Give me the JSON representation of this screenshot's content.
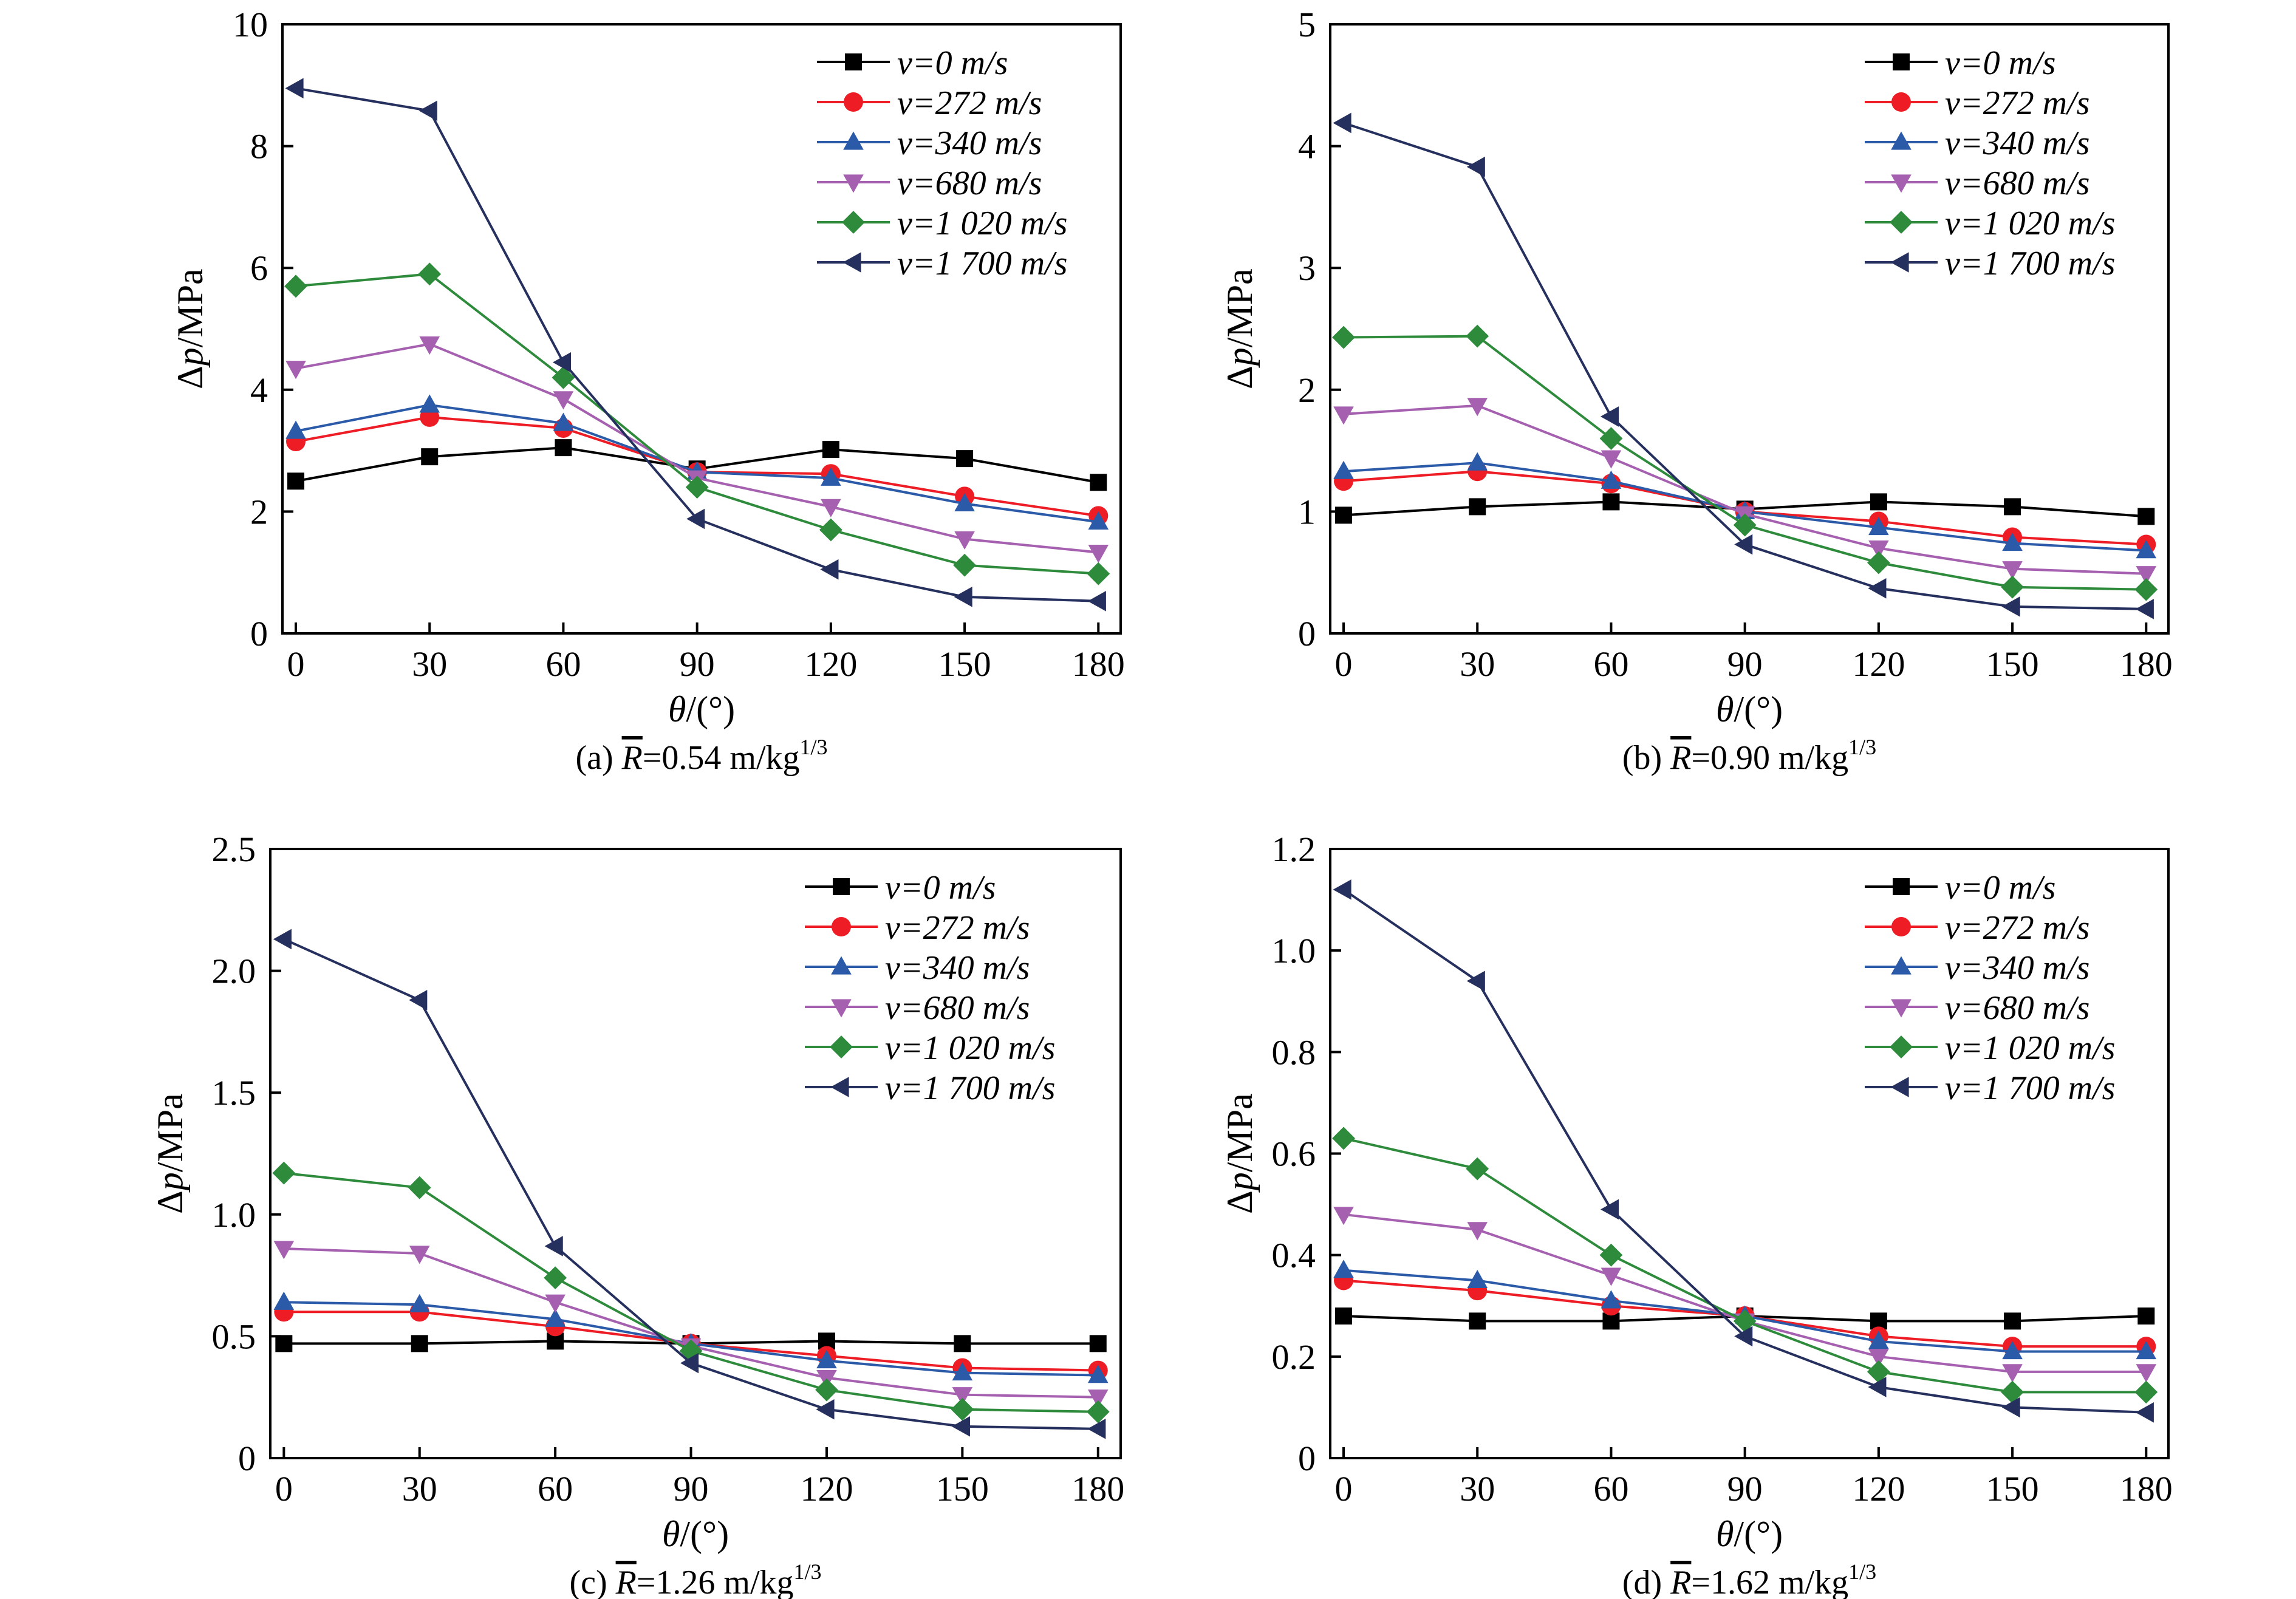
{
  "chart_data": [
    {
      "type": "line",
      "panel": "(a)",
      "caption": {
        "prefix": "(a) ",
        "var": "R",
        "eq": "=0.54 m/kg",
        "sup": "1/3"
      },
      "xlabel": {
        "var": "θ",
        "unit": "/(°)"
      },
      "ylabel": {
        "prefix": "Δ",
        "var": "p",
        "unit": "/MPa"
      },
      "x": [
        0,
        30,
        60,
        90,
        120,
        150,
        180
      ],
      "xlim": [
        -3,
        185
      ],
      "ylim": [
        0,
        10
      ],
      "yticks": [
        "0",
        "2",
        "4",
        "6",
        "8",
        "10"
      ],
      "xticks": [
        "0",
        "30",
        "60",
        "90",
        "120",
        "150",
        "180"
      ],
      "legend_position": "top-right",
      "series": [
        {
          "name": "v=0 m/s",
          "values": [
            2.5,
            2.9,
            3.05,
            2.7,
            3.02,
            2.87,
            2.48
          ]
        },
        {
          "name": "v=272 m/s",
          "values": [
            3.15,
            3.55,
            3.37,
            2.65,
            2.62,
            2.25,
            1.93
          ]
        },
        {
          "name": "v=340 m/s",
          "values": [
            3.32,
            3.75,
            3.45,
            2.65,
            2.55,
            2.13,
            1.83
          ]
        },
        {
          "name": "v=680 m/s",
          "values": [
            4.35,
            4.75,
            3.85,
            2.55,
            2.08,
            1.55,
            1.33
          ]
        },
        {
          "name": "v=1 020 m/s",
          "values": [
            5.7,
            5.9,
            4.2,
            2.4,
            1.7,
            1.12,
            0.98
          ]
        },
        {
          "name": "v=1 700 m/s",
          "values": [
            8.95,
            8.58,
            4.45,
            1.88,
            1.05,
            0.6,
            0.53
          ]
        }
      ]
    },
    {
      "type": "line",
      "panel": "(b)",
      "caption": {
        "prefix": "(b) ",
        "var": "R",
        "eq": "=0.90 m/kg",
        "sup": "1/3"
      },
      "xlabel": {
        "var": "θ",
        "unit": "/(°)"
      },
      "ylabel": {
        "prefix": "Δ",
        "var": "p",
        "unit": "/MPa"
      },
      "x": [
        0,
        30,
        60,
        90,
        120,
        150,
        180
      ],
      "xlim": [
        -3,
        185
      ],
      "ylim": [
        0,
        5
      ],
      "yticks": [
        "0",
        "1",
        "2",
        "3",
        "4",
        "5"
      ],
      "xticks": [
        "0",
        "30",
        "60",
        "90",
        "120",
        "150",
        "180"
      ],
      "legend_position": "top-right",
      "series": [
        {
          "name": "v=0 m/s",
          "values": [
            0.97,
            1.04,
            1.08,
            1.02,
            1.08,
            1.04,
            0.96
          ]
        },
        {
          "name": "v=272 m/s",
          "values": [
            1.25,
            1.33,
            1.23,
            1.0,
            0.92,
            0.79,
            0.73
          ]
        },
        {
          "name": "v=340 m/s",
          "values": [
            1.33,
            1.4,
            1.25,
            1.0,
            0.87,
            0.74,
            0.68
          ]
        },
        {
          "name": "v=680 m/s",
          "values": [
            1.8,
            1.87,
            1.44,
            0.98,
            0.7,
            0.53,
            0.49
          ]
        },
        {
          "name": "v=1 020 m/s",
          "values": [
            2.43,
            2.44,
            1.6,
            0.89,
            0.58,
            0.38,
            0.36
          ]
        },
        {
          "name": "v=1 700 m/s",
          "values": [
            4.19,
            3.83,
            1.78,
            0.73,
            0.37,
            0.22,
            0.2
          ]
        }
      ]
    },
    {
      "type": "line",
      "panel": "(c)",
      "caption": {
        "prefix": "(c) ",
        "var": "R",
        "eq": "=1.26 m/kg",
        "sup": "1/3"
      },
      "xlabel": {
        "var": "θ",
        "unit": "/(°)"
      },
      "ylabel": {
        "prefix": "Δ",
        "var": "p",
        "unit": "/MPa"
      },
      "x": [
        0,
        30,
        60,
        90,
        120,
        150,
        180
      ],
      "xlim": [
        -3,
        185
      ],
      "ylim": [
        0,
        2.5
      ],
      "yticks": [
        "0",
        "0.5",
        "1.0",
        "1.5",
        "2.0",
        "2.5"
      ],
      "xticks": [
        "0",
        "30",
        "60",
        "90",
        "120",
        "150",
        "180"
      ],
      "legend_position": "top-right",
      "series": [
        {
          "name": "v=0 m/s",
          "values": [
            0.47,
            0.47,
            0.48,
            0.47,
            0.48,
            0.47,
            0.47
          ]
        },
        {
          "name": "v=272 m/s",
          "values": [
            0.6,
            0.6,
            0.54,
            0.47,
            0.42,
            0.37,
            0.36
          ]
        },
        {
          "name": "v=340 m/s",
          "values": [
            0.64,
            0.63,
            0.57,
            0.47,
            0.4,
            0.35,
            0.34
          ]
        },
        {
          "name": "v=680 m/s",
          "values": [
            0.86,
            0.84,
            0.64,
            0.46,
            0.33,
            0.26,
            0.25
          ]
        },
        {
          "name": "v=1 020 m/s",
          "values": [
            1.17,
            1.11,
            0.74,
            0.44,
            0.28,
            0.2,
            0.19
          ]
        },
        {
          "name": "v=1 700 m/s",
          "values": [
            2.13,
            1.88,
            0.87,
            0.39,
            0.2,
            0.13,
            0.12
          ]
        }
      ]
    },
    {
      "type": "line",
      "panel": "(d)",
      "caption": {
        "prefix": "(d) ",
        "var": "R",
        "eq": "=1.62 m/kg",
        "sup": "1/3"
      },
      "xlabel": {
        "var": "θ",
        "unit": "/(°)"
      },
      "ylabel": {
        "prefix": "Δ",
        "var": "p",
        "unit": "/MPa"
      },
      "x": [
        0,
        30,
        60,
        90,
        120,
        150,
        180
      ],
      "xlim": [
        -3,
        185
      ],
      "ylim": [
        0,
        1.2
      ],
      "yticks": [
        "0",
        "0.2",
        "0.4",
        "0.6",
        "0.8",
        "1.0",
        "1.2"
      ],
      "xticks": [
        "0",
        "30",
        "60",
        "90",
        "120",
        "150",
        "180"
      ],
      "legend_position": "top-right",
      "series": [
        {
          "name": "v=0 m/s",
          "values": [
            0.28,
            0.27,
            0.27,
            0.28,
            0.27,
            0.27,
            0.28
          ]
        },
        {
          "name": "v=272 m/s",
          "values": [
            0.35,
            0.33,
            0.3,
            0.28,
            0.24,
            0.22,
            0.22
          ]
        },
        {
          "name": "v=340 m/s",
          "values": [
            0.37,
            0.35,
            0.31,
            0.28,
            0.23,
            0.21,
            0.21
          ]
        },
        {
          "name": "v=680 m/s",
          "values": [
            0.48,
            0.45,
            0.36,
            0.27,
            0.2,
            0.17,
            0.17
          ]
        },
        {
          "name": "v=1 020 m/s",
          "values": [
            0.63,
            0.57,
            0.4,
            0.27,
            0.17,
            0.13,
            0.13
          ]
        },
        {
          "name": "v=1 700 m/s",
          "values": [
            1.12,
            0.94,
            0.49,
            0.24,
            0.14,
            0.1,
            0.09
          ]
        }
      ]
    }
  ],
  "series_styles": [
    {
      "color": "#000000",
      "marker": "square"
    },
    {
      "color": "#ee1c25",
      "marker": "circle"
    },
    {
      "color": "#2b5aa8",
      "marker": "triangle-up"
    },
    {
      "color": "#a560b0",
      "marker": "triangle-down"
    },
    {
      "color": "#2e8b3c",
      "marker": "diamond"
    },
    {
      "color": "#26305e",
      "marker": "triangle-left"
    }
  ]
}
